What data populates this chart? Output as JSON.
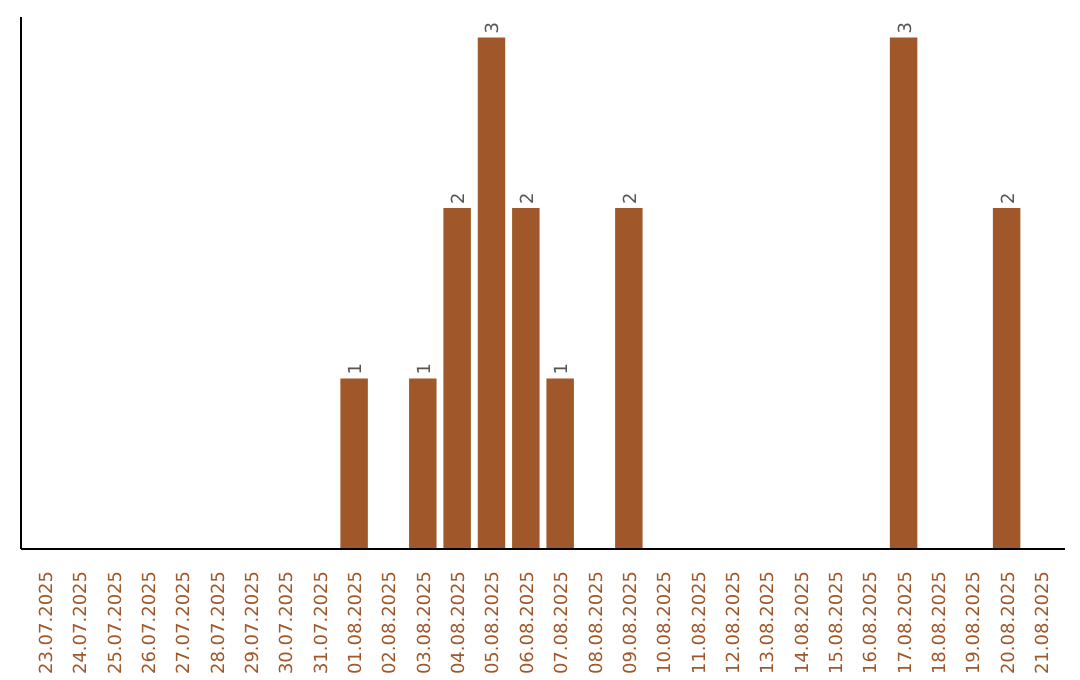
{
  "chart_data": {
    "type": "bar",
    "categories": [
      "23.07.2025",
      "24.07.2025",
      "25.07.2025",
      "26.07.2025",
      "27.07.2025",
      "28.07.2025",
      "29.07.2025",
      "30.07.2025",
      "31.07.2025",
      "01.08.2025",
      "02.08.2025",
      "03.08.2025",
      "04.08.2025",
      "05.08.2025",
      "06.08.2025",
      "07.08.2025",
      "08.08.2025",
      "09.08.2025",
      "10.08.2025",
      "11.08.2025",
      "12.08.2025",
      "13.08.2025",
      "14.08.2025",
      "15.08.2025",
      "16.08.2025",
      "17.08.2025",
      "18.08.2025",
      "19.08.2025",
      "20.08.2025",
      "21.08.2025"
    ],
    "values": [
      0,
      0,
      0,
      0,
      0,
      0,
      0,
      0,
      0,
      1,
      0,
      1,
      2,
      3,
      2,
      1,
      0,
      2,
      0,
      0,
      0,
      0,
      0,
      0,
      0,
      3,
      0,
      0,
      2,
      0
    ],
    "value_labels": [
      null,
      null,
      null,
      null,
      null,
      null,
      null,
      null,
      null,
      "1",
      null,
      "1",
      "2",
      "3",
      "2",
      "1",
      null,
      "2",
      null,
      null,
      null,
      null,
      null,
      null,
      null,
      "3",
      null,
      null,
      "2",
      null
    ],
    "color": "#a0572a",
    "tick_labels": "x",
    "grid": false
  }
}
